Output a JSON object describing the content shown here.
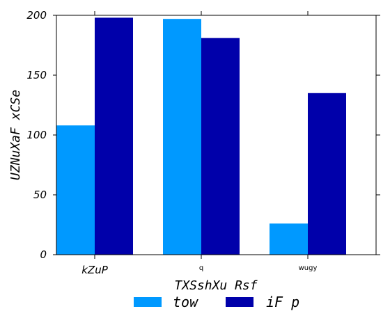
{
  "chart_data": {
    "type": "bar",
    "categories": [
      "kZuP",
      "q",
      "wugy"
    ],
    "series": [
      {
        "name": "tow",
        "values": [
          108,
          197,
          26
        ],
        "color": "#0099ff"
      },
      {
        "name": "iF p",
        "values": [
          198,
          181,
          135
        ],
        "color": "#0000aa"
      }
    ],
    "xlabel": "TXSshXu Rsf",
    "ylabel": "UZNuXaF xCSe",
    "ylim": [
      0,
      200
    ],
    "yticks": [
      "0",
      "50",
      "100",
      "150",
      "200"
    ],
    "grid": false,
    "legend_position": "bottom-center"
  }
}
